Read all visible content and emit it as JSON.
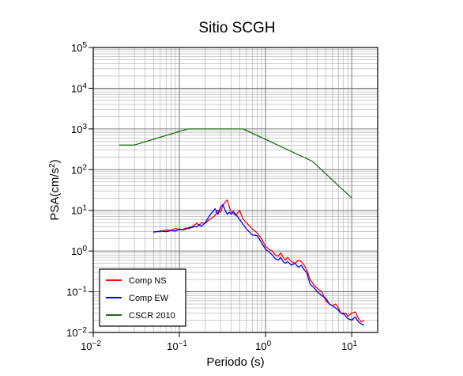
{
  "chart_data": {
    "type": "line",
    "title": "Sitio SCGH",
    "xlabel": "Periodo (s)",
    "ylabel_main": "PSA(cm/s",
    "ylabel_sup": "2",
    "ylabel_end": ")",
    "x_scale": "log",
    "y_scale": "log",
    "xlim": [
      0.01,
      20
    ],
    "ylim": [
      0.01,
      100000
    ],
    "grid": true,
    "legend_position": "bottom-left",
    "x_ticks": [
      {
        "base": "10",
        "exp": "−2",
        "value": 0.01
      },
      {
        "base": "10",
        "exp": "−1",
        "value": 0.1
      },
      {
        "base": "10",
        "exp": "0",
        "value": 1
      },
      {
        "base": "10",
        "exp": "1",
        "value": 10
      }
    ],
    "y_ticks": [
      {
        "base": "10",
        "exp": "−2",
        "value": 0.01
      },
      {
        "base": "10",
        "exp": "−1",
        "value": 0.1
      },
      {
        "base": "10",
        "exp": "0",
        "value": 1
      },
      {
        "base": "10",
        "exp": "1",
        "value": 10
      },
      {
        "base": "10",
        "exp": "2",
        "value": 100
      },
      {
        "base": "10",
        "exp": "3",
        "value": 1000
      },
      {
        "base": "10",
        "exp": "4",
        "value": 10000
      },
      {
        "base": "10",
        "exp": "5",
        "value": 100000
      }
    ],
    "series": [
      {
        "name": "CSCR 2010",
        "color": "#1a6b1a",
        "x": [
          0.02,
          0.03,
          0.125,
          0.55,
          3.5,
          10
        ],
        "y": [
          400,
          400,
          1000,
          1000,
          160,
          20
        ]
      },
      {
        "name": "Comp NS",
        "color": "#ff0000",
        "x": [
          0.05,
          0.06,
          0.07,
          0.08,
          0.09,
          0.1,
          0.11,
          0.12,
          0.13,
          0.14,
          0.15,
          0.16,
          0.17,
          0.18,
          0.2,
          0.22,
          0.24,
          0.26,
          0.28,
          0.3,
          0.32,
          0.34,
          0.36,
          0.38,
          0.4,
          0.42,
          0.45,
          0.5,
          0.55,
          0.6,
          0.7,
          0.8,
          0.9,
          1.0,
          1.1,
          1.2,
          1.3,
          1.4,
          1.5,
          1.6,
          1.7,
          1.8,
          2.0,
          2.2,
          2.4,
          2.6,
          2.8,
          3.0,
          3.3,
          3.6,
          4.0,
          4.5,
          5.0,
          5.5,
          6.0,
          6.5,
          7.0,
          7.5,
          8.0,
          8.5,
          9.0,
          10.0,
          11.0,
          12.0,
          13.0,
          14.0
        ],
        "y": [
          3.0,
          3.0,
          3.3,
          3.2,
          3.6,
          3.3,
          3.4,
          3.7,
          3.5,
          4.0,
          4.4,
          4.8,
          4.2,
          5.0,
          4.8,
          5.8,
          6.5,
          7.5,
          10.0,
          9.0,
          13.0,
          16.0,
          18.0,
          12.0,
          9.0,
          8.5,
          7.5,
          10.0,
          6.0,
          5.0,
          3.5,
          2.8,
          2.0,
          1.3,
          1.1,
          1.0,
          0.8,
          0.75,
          0.9,
          0.7,
          0.6,
          0.7,
          0.55,
          0.5,
          0.6,
          0.55,
          0.45,
          0.35,
          0.2,
          0.15,
          0.12,
          0.1,
          0.06,
          0.05,
          0.045,
          0.05,
          0.04,
          0.03,
          0.028,
          0.03,
          0.025,
          0.03,
          0.032,
          0.022,
          0.018,
          0.02
        ]
      },
      {
        "name": "Comp EW",
        "color": "#0000ff",
        "x": [
          0.05,
          0.06,
          0.07,
          0.08,
          0.09,
          0.1,
          0.11,
          0.12,
          0.13,
          0.14,
          0.15,
          0.16,
          0.17,
          0.18,
          0.2,
          0.22,
          0.24,
          0.26,
          0.28,
          0.3,
          0.32,
          0.34,
          0.36,
          0.38,
          0.4,
          0.42,
          0.45,
          0.5,
          0.55,
          0.6,
          0.7,
          0.8,
          0.9,
          1.0,
          1.1,
          1.2,
          1.3,
          1.4,
          1.5,
          1.6,
          1.7,
          1.8,
          2.0,
          2.2,
          2.4,
          2.6,
          2.8,
          3.0,
          3.3,
          3.6,
          4.0,
          4.5,
          5.0,
          5.5,
          6.0,
          6.5,
          7.0,
          7.5,
          8.0,
          8.5,
          9.0,
          10.0,
          11.0,
          12.0,
          13.0,
          14.0
        ],
        "y": [
          2.9,
          3.1,
          3.0,
          3.2,
          3.1,
          3.5,
          3.3,
          3.5,
          3.8,
          3.8,
          4.0,
          3.9,
          4.5,
          4.0,
          5.0,
          7.0,
          9.0,
          11.0,
          8.0,
          12.0,
          14.0,
          10.0,
          8.0,
          9.0,
          8.0,
          9.5,
          8.0,
          6.0,
          4.5,
          3.5,
          2.5,
          2.4,
          1.6,
          1.1,
          0.95,
          0.8,
          0.65,
          0.6,
          0.7,
          0.55,
          0.5,
          0.55,
          0.45,
          0.5,
          0.4,
          0.45,
          0.35,
          0.3,
          0.15,
          0.13,
          0.1,
          0.08,
          0.07,
          0.05,
          0.045,
          0.04,
          0.035,
          0.03,
          0.03,
          0.025,
          0.022,
          0.02,
          0.024,
          0.018,
          0.016,
          0.015
        ]
      }
    ],
    "legend_order": [
      "Comp NS",
      "Comp EW",
      "CSCR 2010"
    ]
  }
}
